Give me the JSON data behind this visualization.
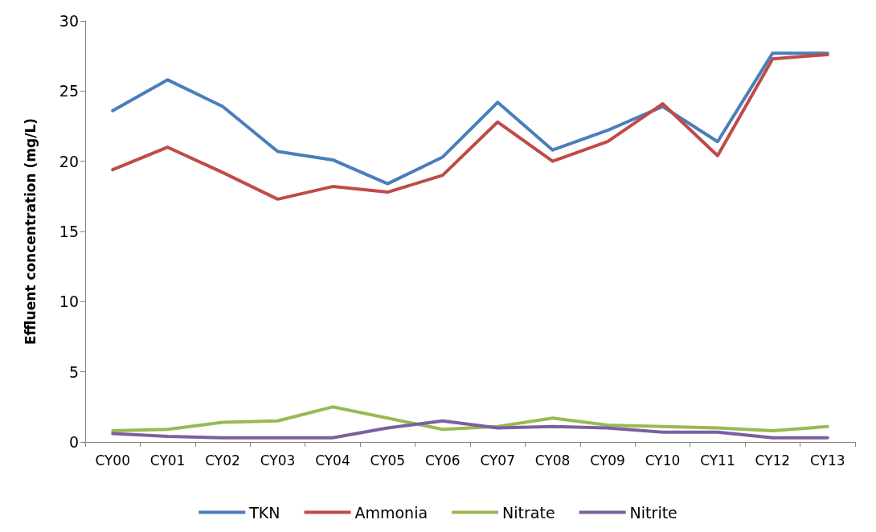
{
  "chart_data": {
    "type": "line",
    "ylabel": "Effluent concentration (mg/L)",
    "categories": [
      "CY00",
      "CY01",
      "CY02",
      "CY03",
      "CY04",
      "CY05",
      "CY06",
      "CY07",
      "CY08",
      "CY09",
      "CY10",
      "CY11",
      "CY12",
      "CY13"
    ],
    "series": [
      {
        "name": "TKN",
        "color": "#4a7ebb",
        "values": [
          23.6,
          25.8,
          23.9,
          20.7,
          20.1,
          18.4,
          20.3,
          24.2,
          20.8,
          22.2,
          23.9,
          21.4,
          27.7,
          27.7
        ]
      },
      {
        "name": "Ammonia",
        "color": "#be4b48",
        "values": [
          19.4,
          21.0,
          19.2,
          17.3,
          18.2,
          17.8,
          19.0,
          22.8,
          20.0,
          21.4,
          24.1,
          20.4,
          27.3,
          27.6
        ]
      },
      {
        "name": "Nitrate",
        "color": "#98b954",
        "values": [
          0.8,
          0.9,
          1.4,
          1.5,
          2.5,
          1.7,
          0.9,
          1.1,
          1.7,
          1.2,
          1.1,
          1.0,
          0.8,
          1.1
        ]
      },
      {
        "name": "Nitrite",
        "color": "#7d5fa0",
        "values": [
          0.6,
          0.4,
          0.3,
          0.3,
          0.3,
          1.0,
          1.5,
          1.0,
          1.1,
          1.0,
          0.7,
          0.7,
          0.3,
          0.3
        ]
      }
    ],
    "ylim": [
      0,
      30
    ],
    "yticks": [
      0,
      5,
      10,
      15,
      20,
      25,
      30
    ],
    "grid": false,
    "legend": "bottom",
    "marker": "none",
    "line_style": "solid"
  }
}
